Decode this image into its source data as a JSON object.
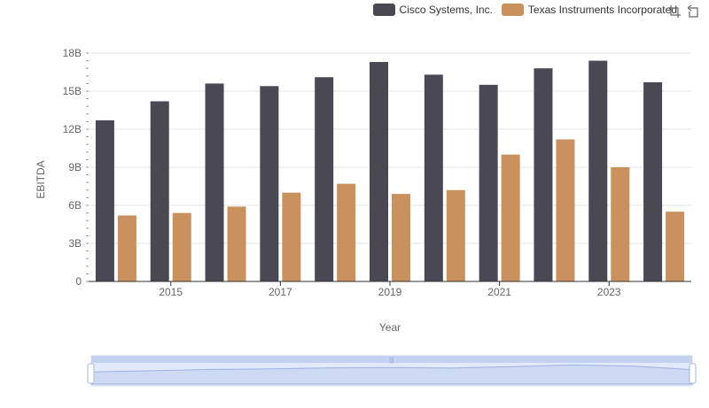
{
  "chart_data": {
    "type": "bar",
    "xlabel": "Year",
    "ylabel": "EBITDA",
    "categories": [
      "2014",
      "2015",
      "2016",
      "2017",
      "2018",
      "2019",
      "2020",
      "2021",
      "2022",
      "2023",
      "2024"
    ],
    "x_tick_labels": [
      "2015",
      "2017",
      "2019",
      "2021",
      "2023"
    ],
    "y_ticks": [
      "0",
      "3B",
      "6B",
      "9B",
      "12B",
      "15B",
      "18B"
    ],
    "ylim": [
      0,
      18000000000
    ],
    "grid": true,
    "legend_position": "top-right",
    "series": [
      {
        "name": "Cisco Systems, Inc.",
        "color": "#4a4953",
        "values": [
          12700000000,
          14200000000,
          15600000000,
          15400000000,
          16100000000,
          17300000000,
          16300000000,
          15500000000,
          16800000000,
          17400000000,
          15700000000
        ]
      },
      {
        "name": "Texas Instruments Incorporated",
        "color": "#c8915e",
        "values": [
          5200000000,
          5400000000,
          5900000000,
          7000000000,
          7700000000,
          6900000000,
          7200000000,
          10000000000,
          11200000000,
          9000000000,
          5500000000
        ]
      }
    ]
  },
  "legend": {
    "items": [
      {
        "label": "Cisco Systems, Inc.",
        "color": "#4a4953"
      },
      {
        "label": "Texas Instruments Incorporated",
        "color": "#c8915e"
      }
    ]
  },
  "toolbox": {
    "zoom_icon": "data-zoom-icon",
    "restore_icon": "restore-icon"
  },
  "slider": {
    "start": 0,
    "end": 100,
    "fill_color": "#d6e1f7",
    "handle_grip": "|||"
  }
}
